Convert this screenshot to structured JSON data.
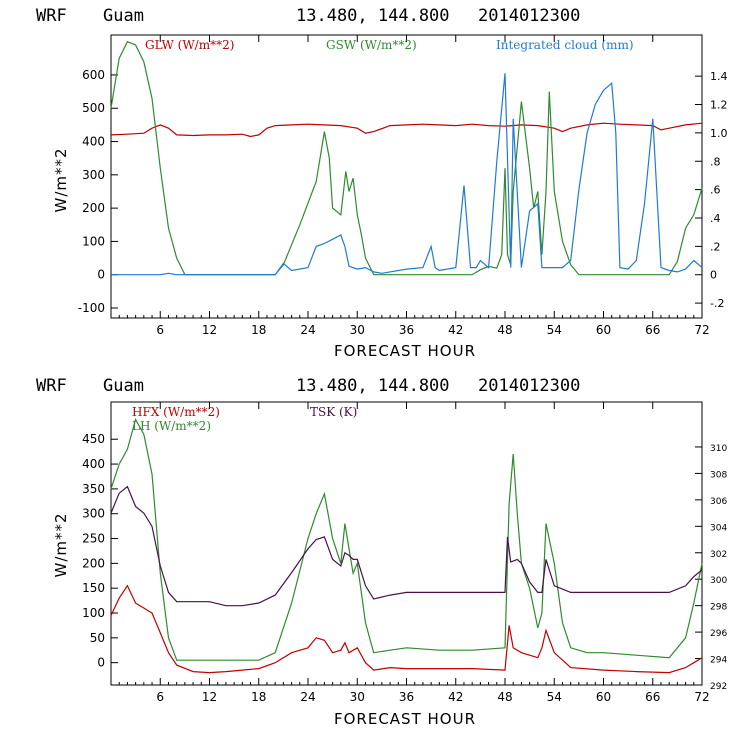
{
  "colors": {
    "red": "#c00000",
    "green": "#2e8b2e",
    "blue": "#1f7ad8",
    "purple": "#4b0f4b",
    "axis": "#000000"
  },
  "chart_data": [
    {
      "type": "line",
      "header": {
        "model": "WRF",
        "location": "Guam",
        "coords": "13.480, 144.800",
        "init": "2014012300"
      },
      "xlabel": "FORECAST HOUR",
      "ylabel": "W/m**2",
      "xlim": [
        0,
        72
      ],
      "ylim": [
        -130,
        720
      ],
      "y2lim": [
        -0.305,
        1.69
      ],
      "xticks": [
        6,
        12,
        18,
        24,
        30,
        36,
        42,
        48,
        54,
        60,
        66,
        72
      ],
      "yticks": [
        -100,
        0,
        100,
        200,
        300,
        400,
        500,
        600
      ],
      "y2ticks": [
        -0.2,
        0,
        0.2,
        0.4,
        0.6,
        0.8,
        1.0,
        1.2,
        1.4
      ],
      "y2ticklabels": [
        "-.2",
        "0",
        ".2",
        ".4",
        ".6",
        ".8",
        "1.0",
        "1.2",
        "1.4"
      ],
      "series": [
        {
          "name": "GLW (W/m**2)",
          "color": "red",
          "axis": "left",
          "x": [
            0,
            2,
            4,
            5,
            6,
            7,
            8,
            10,
            12,
            14,
            16,
            17,
            18,
            19,
            20,
            22,
            24,
            26,
            28,
            30,
            31,
            32,
            34,
            36,
            38,
            40,
            42,
            44,
            46,
            48,
            50,
            52,
            54,
            55,
            56,
            58,
            60,
            62,
            64,
            66,
            67,
            68,
            70,
            72
          ],
          "y": [
            420,
            422,
            425,
            440,
            450,
            440,
            420,
            418,
            420,
            420,
            422,
            415,
            420,
            440,
            448,
            450,
            452,
            450,
            448,
            440,
            425,
            430,
            448,
            450,
            452,
            450,
            448,
            452,
            448,
            446,
            450,
            448,
            440,
            430,
            440,
            450,
            455,
            452,
            450,
            448,
            435,
            440,
            450,
            455
          ]
        },
        {
          "name": "GSW (W/m**2)",
          "color": "green",
          "axis": "left",
          "x": [
            0,
            1,
            2,
            3,
            4,
            5,
            6,
            7,
            8,
            9,
            20,
            21,
            23,
            25,
            26,
            26.6,
            27,
            28,
            28.6,
            29,
            29.5,
            30,
            30.5,
            31,
            32,
            44,
            45,
            46,
            47,
            47.6,
            48,
            48.3,
            48.7,
            49,
            50,
            51,
            51.5,
            52,
            52.5,
            53,
            53.4,
            54,
            55,
            56,
            57,
            68,
            69,
            70,
            71,
            72
          ],
          "y": [
            500,
            650,
            700,
            690,
            640,
            530,
            320,
            140,
            50,
            0,
            0,
            30,
            150,
            280,
            430,
            350,
            200,
            180,
            310,
            250,
            290,
            180,
            120,
            50,
            0,
            0,
            15,
            25,
            20,
            60,
            320,
            60,
            30,
            250,
            520,
            320,
            200,
            250,
            60,
            250,
            550,
            250,
            100,
            30,
            0,
            0,
            40,
            140,
            180,
            260
          ]
        },
        {
          "name": "Integrated cloud (mm)",
          "color": "blue",
          "axis": "right",
          "x": [
            0,
            3,
            5,
            6,
            7,
            8,
            20,
            21,
            22,
            24,
            25,
            26,
            27,
            28,
            28.5,
            29,
            30,
            31,
            32,
            33,
            36,
            38,
            39,
            39.5,
            40,
            42,
            43,
            43.8,
            44.5,
            45,
            46,
            47,
            48,
            48.7,
            49,
            50,
            51,
            52,
            52.5,
            53,
            54,
            55,
            56,
            57,
            58,
            59,
            60,
            61,
            61.5,
            62,
            63,
            64,
            65,
            66,
            67,
            68,
            69,
            70,
            71,
            72
          ],
          "y": [
            0,
            0,
            0,
            0,
            0.01,
            0,
            0,
            0.08,
            0.03,
            0.05,
            0.2,
            0.22,
            0.25,
            0.28,
            0.2,
            0.06,
            0.04,
            0.05,
            0.02,
            0.01,
            0.04,
            0.05,
            0.2,
            0.05,
            0.03,
            0.05,
            0.63,
            0.05,
            0.05,
            0.1,
            0.05,
            0.8,
            1.42,
            0.05,
            1.1,
            0.05,
            0.45,
            0.5,
            0.05,
            0.05,
            0.05,
            0.05,
            0.1,
            0.6,
            1.0,
            1.2,
            1.3,
            1.35,
            1.0,
            0.05,
            0.04,
            0.1,
            0.5,
            1.1,
            0.05,
            0.03,
            0.02,
            0.04,
            0.1,
            0.05
          ]
        }
      ]
    },
    {
      "type": "line",
      "header": {
        "model": "WRF",
        "location": "Guam",
        "coords": "13.480, 144.800",
        "init": "2014012300"
      },
      "xlabel": "FORECAST HOUR",
      "ylabel": "W/m**2",
      "xlim": [
        0,
        72
      ],
      "ylim": [
        -45,
        525
      ],
      "y2lim": [
        292,
        313.4
      ],
      "xticks": [
        6,
        12,
        18,
        24,
        30,
        36,
        42,
        48,
        54,
        60,
        66,
        72
      ],
      "yticks": [
        0,
        50,
        100,
        150,
        200,
        250,
        300,
        350,
        400,
        450
      ],
      "y2ticks": [
        292,
        294,
        296,
        298,
        300,
        302,
        304,
        306,
        308,
        310
      ],
      "series": [
        {
          "name": "HFX (W/m**2)",
          "color": "red",
          "axis": "left",
          "x": [
            0,
            1,
            2,
            3,
            4,
            5,
            6,
            7,
            8,
            10,
            12,
            14,
            16,
            18,
            20,
            22,
            24,
            25,
            26,
            27,
            28,
            28.5,
            29,
            30,
            31,
            32,
            34,
            36,
            40,
            44,
            48,
            48.5,
            49,
            50,
            51,
            52,
            52.5,
            53,
            54,
            56,
            60,
            64,
            68,
            70,
            71,
            72
          ],
          "y": [
            95,
            130,
            155,
            120,
            110,
            100,
            60,
            20,
            -5,
            -18,
            -20,
            -18,
            -15,
            -12,
            0,
            20,
            30,
            50,
            45,
            20,
            25,
            40,
            20,
            30,
            0,
            -15,
            -10,
            -12,
            -12,
            -12,
            -15,
            75,
            30,
            20,
            15,
            10,
            30,
            65,
            20,
            -10,
            -15,
            -18,
            -20,
            -10,
            0,
            10
          ]
        },
        {
          "name": "LH (W/m**2)",
          "color": "green",
          "axis": "left",
          "x": [
            0,
            1,
            2,
            3,
            4,
            5,
            6,
            7,
            8,
            10,
            12,
            14,
            16,
            18,
            20,
            22,
            24,
            25,
            26,
            27,
            28,
            28.5,
            29,
            29.5,
            30,
            31,
            32,
            34,
            36,
            40,
            44,
            48,
            48.5,
            49,
            49.5,
            50,
            51,
            52,
            52.5,
            53,
            54,
            55,
            56,
            58,
            60,
            64,
            68,
            70,
            71,
            72
          ],
          "y": [
            350,
            400,
            430,
            490,
            460,
            380,
            180,
            50,
            5,
            5,
            5,
            5,
            5,
            5,
            20,
            120,
            250,
            300,
            340,
            250,
            200,
            280,
            230,
            180,
            200,
            80,
            20,
            25,
            30,
            25,
            25,
            30,
            320,
            420,
            300,
            200,
            150,
            70,
            100,
            280,
            200,
            80,
            30,
            20,
            20,
            15,
            10,
            50,
            120,
            200
          ]
        },
        {
          "name": "TSK (K)",
          "color": "purple",
          "axis": "right",
          "x": [
            0,
            1,
            2,
            3,
            4,
            5,
            6,
            7,
            8,
            10,
            12,
            14,
            16,
            18,
            20,
            22,
            24,
            25,
            26,
            27,
            28,
            28.5,
            29,
            29.5,
            30,
            31,
            32,
            34,
            36,
            40,
            44,
            48,
            48.3,
            48.7,
            49.5,
            50,
            51,
            52,
            52.5,
            53,
            54,
            56,
            60,
            64,
            66,
            68,
            70,
            71,
            72
          ],
          "y": [
            305,
            306.5,
            307,
            305.5,
            305,
            304,
            301,
            299,
            298.3,
            298.3,
            298.3,
            298,
            298,
            298.2,
            298.8,
            300.5,
            302.3,
            303,
            303.2,
            301.5,
            301,
            302,
            301.8,
            301.5,
            301.5,
            299.5,
            298.5,
            298.8,
            299,
            299,
            299,
            299,
            303.2,
            301.3,
            301.5,
            301.2,
            299.8,
            299,
            299,
            301.5,
            299.5,
            299,
            299,
            299,
            299,
            299,
            299.5,
            300.2,
            300.7
          ]
        }
      ]
    }
  ]
}
